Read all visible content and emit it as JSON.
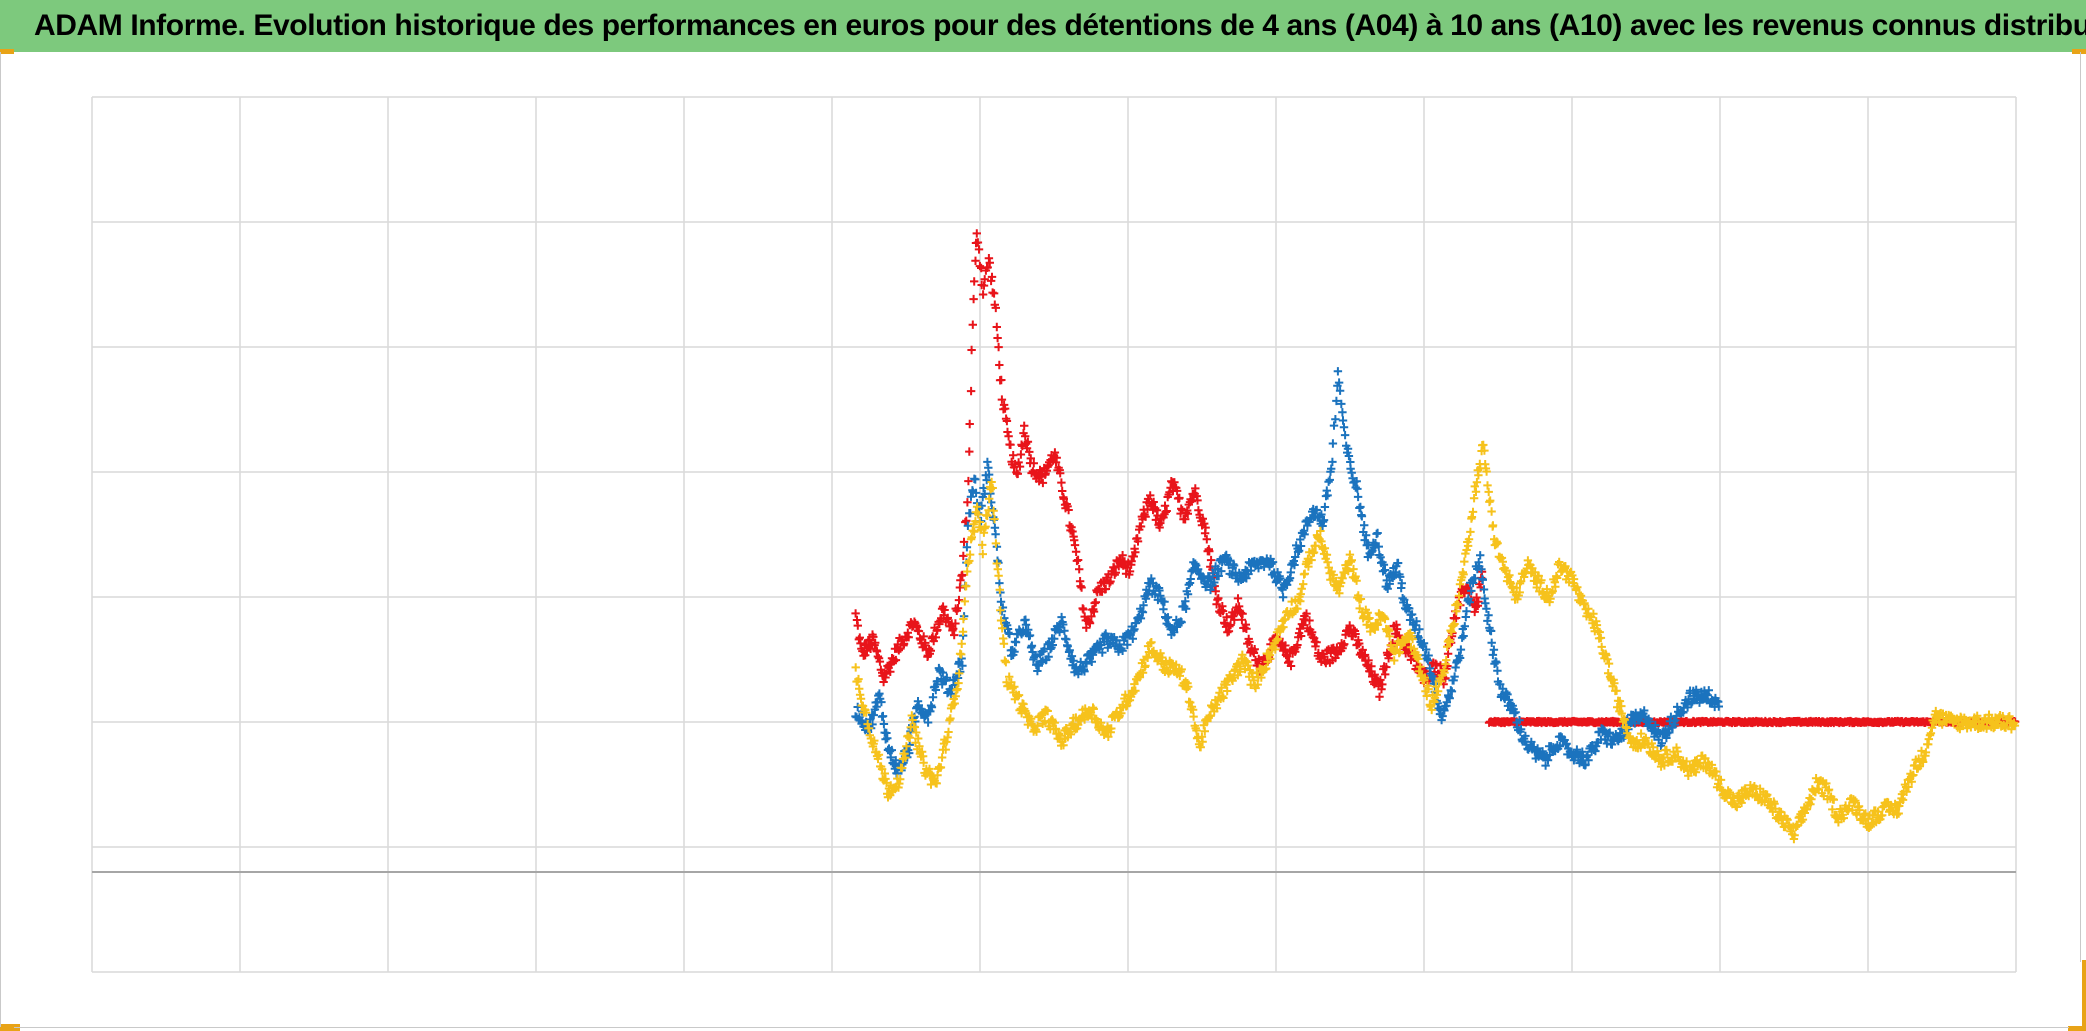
{
  "header": {
    "title": "ADAM Informe. Evolution historique des performances en euros pour des détentions de 4 ans (A04) à 10 ans (A10) avec les revenus connus distribués"
  },
  "colors": {
    "header_bg": "#7dc97d",
    "corner_marks": "#e8a317",
    "gridline": "#d9d9d9",
    "baseline": "#a6a6a6",
    "series_red": "#e8141a",
    "series_blue": "#1b73be",
    "series_yellow": "#f6c21c"
  },
  "chart_data": {
    "type": "scatter",
    "marker": "plus",
    "title": "ADAM Informe. Evolution historique des performances en euros pour des détentions de 4 ans (A04) à 10 ans (A10) avec les revenus connus distribués",
    "xlabel": "",
    "ylabel": "",
    "xlim": [
      0,
      13
    ],
    "ylim": [
      -1,
      6
    ],
    "grid": true,
    "legend": "none",
    "series": [
      {
        "color": "#e8141a",
        "keypoints": [
          [
            5.16,
            1.85
          ],
          [
            5.2,
            1.55
          ],
          [
            5.28,
            1.65
          ],
          [
            5.35,
            1.35
          ],
          [
            5.45,
            1.6
          ],
          [
            5.55,
            1.8
          ],
          [
            5.65,
            1.55
          ],
          [
            5.75,
            1.9
          ],
          [
            5.82,
            1.7
          ],
          [
            5.88,
            2.2
          ],
          [
            5.92,
            2.9
          ],
          [
            5.95,
            4.2
          ],
          [
            5.98,
            4.95
          ],
          [
            6.02,
            4.45
          ],
          [
            6.06,
            4.7
          ],
          [
            6.1,
            4.35
          ],
          [
            6.15,
            3.6
          ],
          [
            6.2,
            3.2
          ],
          [
            6.25,
            2.95
          ],
          [
            6.3,
            3.35
          ],
          [
            6.35,
            3.05
          ],
          [
            6.42,
            2.95
          ],
          [
            6.5,
            3.15
          ],
          [
            6.58,
            2.75
          ],
          [
            6.65,
            2.35
          ],
          [
            6.72,
            1.75
          ],
          [
            6.8,
            2.05
          ],
          [
            6.88,
            2.15
          ],
          [
            6.95,
            2.3
          ],
          [
            7.02,
            2.2
          ],
          [
            7.08,
            2.55
          ],
          [
            7.15,
            2.8
          ],
          [
            7.22,
            2.55
          ],
          [
            7.3,
            2.9
          ],
          [
            7.38,
            2.65
          ],
          [
            7.45,
            2.85
          ],
          [
            7.52,
            2.55
          ],
          [
            7.6,
            2.0
          ],
          [
            7.68,
            1.75
          ],
          [
            7.75,
            1.95
          ],
          [
            7.82,
            1.6
          ],
          [
            7.9,
            1.45
          ],
          [
            8.0,
            1.65
          ],
          [
            8.1,
            1.5
          ],
          [
            8.2,
            1.85
          ],
          [
            8.3,
            1.5
          ],
          [
            8.4,
            1.55
          ],
          [
            8.5,
            1.75
          ],
          [
            8.6,
            1.5
          ],
          [
            8.7,
            1.25
          ],
          [
            8.8,
            1.75
          ],
          [
            8.9,
            1.55
          ],
          [
            9.0,
            1.35
          ],
          [
            9.08,
            1.45
          ],
          [
            9.14,
            1.35
          ],
          [
            9.2,
            1.8
          ],
          [
            9.28,
            2.1
          ],
          [
            9.35,
            1.9
          ],
          [
            9.4,
            2.2
          ]
        ]
      },
      {
        "color": "#e8141a",
        "keypoints": [
          [
            9.44,
            1.0
          ],
          [
            10.0,
            1.0
          ],
          [
            10.5,
            1.0
          ],
          [
            11.0,
            1.0
          ],
          [
            11.5,
            1.0
          ],
          [
            12.0,
            1.0
          ],
          [
            12.5,
            1.0
          ],
          [
            13.0,
            1.0
          ]
        ]
      },
      {
        "color": "#1b73be",
        "keypoints": [
          [
            5.16,
            1.1
          ],
          [
            5.25,
            0.95
          ],
          [
            5.32,
            1.2
          ],
          [
            5.38,
            0.8
          ],
          [
            5.45,
            0.6
          ],
          [
            5.52,
            0.8
          ],
          [
            5.58,
            1.15
          ],
          [
            5.65,
            1.05
          ],
          [
            5.72,
            1.4
          ],
          [
            5.8,
            1.25
          ],
          [
            5.88,
            1.5
          ],
          [
            5.92,
            2.6
          ],
          [
            5.96,
            2.95
          ],
          [
            6.0,
            2.6
          ],
          [
            6.05,
            3.05
          ],
          [
            6.1,
            2.55
          ],
          [
            6.15,
            1.9
          ],
          [
            6.22,
            1.55
          ],
          [
            6.3,
            1.8
          ],
          [
            6.38,
            1.45
          ],
          [
            6.45,
            1.55
          ],
          [
            6.55,
            1.8
          ],
          [
            6.65,
            1.4
          ],
          [
            6.75,
            1.5
          ],
          [
            6.85,
            1.65
          ],
          [
            6.95,
            1.6
          ],
          [
            7.05,
            1.75
          ],
          [
            7.15,
            2.1
          ],
          [
            7.22,
            2.0
          ],
          [
            7.3,
            1.7
          ],
          [
            7.38,
            1.9
          ],
          [
            7.45,
            2.25
          ],
          [
            7.55,
            2.1
          ],
          [
            7.65,
            2.3
          ],
          [
            7.75,
            2.15
          ],
          [
            7.85,
            2.25
          ],
          [
            7.95,
            2.3
          ],
          [
            8.05,
            2.05
          ],
          [
            8.15,
            2.4
          ],
          [
            8.25,
            2.7
          ],
          [
            8.32,
            2.6
          ],
          [
            8.38,
            3.1
          ],
          [
            8.42,
            3.8
          ],
          [
            8.46,
            3.3
          ],
          [
            8.5,
            3.05
          ],
          [
            8.55,
            2.85
          ],
          [
            8.62,
            2.35
          ],
          [
            8.68,
            2.5
          ],
          [
            8.75,
            2.1
          ],
          [
            8.82,
            2.25
          ],
          [
            8.88,
            1.9
          ],
          [
            8.95,
            1.75
          ],
          [
            9.02,
            1.55
          ],
          [
            9.08,
            1.25
          ],
          [
            9.12,
            1.05
          ],
          [
            9.18,
            1.25
          ],
          [
            9.25,
            1.6
          ],
          [
            9.32,
            2.1
          ],
          [
            9.38,
            2.3
          ],
          [
            9.44,
            1.75
          ],
          [
            9.52,
            1.25
          ],
          [
            9.6,
            1.1
          ],
          [
            9.68,
            0.85
          ],
          [
            9.75,
            0.75
          ],
          [
            9.82,
            0.7
          ],
          [
            9.9,
            0.85
          ],
          [
            10.0,
            0.75
          ],
          [
            10.1,
            0.7
          ],
          [
            10.2,
            0.9
          ],
          [
            10.3,
            0.85
          ],
          [
            10.4,
            1.0
          ],
          [
            10.5,
            1.05
          ],
          [
            10.6,
            0.85
          ],
          [
            10.7,
            1.05
          ],
          [
            10.8,
            1.2
          ],
          [
            10.95,
            1.2
          ],
          [
            11.0,
            1.1
          ]
        ]
      },
      {
        "color": "#f6c21c",
        "keypoints": [
          [
            5.16,
            1.4
          ],
          [
            5.22,
            1.1
          ],
          [
            5.3,
            0.75
          ],
          [
            5.38,
            0.45
          ],
          [
            5.46,
            0.55
          ],
          [
            5.54,
            1.0
          ],
          [
            5.62,
            0.65
          ],
          [
            5.7,
            0.5
          ],
          [
            5.78,
            0.9
          ],
          [
            5.86,
            1.4
          ],
          [
            5.92,
            2.3
          ],
          [
            5.98,
            2.7
          ],
          [
            6.02,
            2.4
          ],
          [
            6.08,
            2.95
          ],
          [
            6.12,
            2.2
          ],
          [
            6.18,
            1.35
          ],
          [
            6.25,
            1.2
          ],
          [
            6.35,
            0.95
          ],
          [
            6.45,
            1.05
          ],
          [
            6.55,
            0.85
          ],
          [
            6.65,
            1.0
          ],
          [
            6.75,
            1.1
          ],
          [
            6.85,
            0.9
          ],
          [
            6.95,
            1.1
          ],
          [
            7.05,
            1.3
          ],
          [
            7.15,
            1.6
          ],
          [
            7.25,
            1.45
          ],
          [
            7.35,
            1.4
          ],
          [
            7.42,
            1.2
          ],
          [
            7.48,
            0.8
          ],
          [
            7.55,
            1.05
          ],
          [
            7.62,
            1.2
          ],
          [
            7.7,
            1.35
          ],
          [
            7.78,
            1.5
          ],
          [
            7.85,
            1.3
          ],
          [
            7.92,
            1.45
          ],
          [
            8.0,
            1.65
          ],
          [
            8.08,
            1.9
          ],
          [
            8.15,
            1.95
          ],
          [
            8.22,
            2.3
          ],
          [
            8.3,
            2.5
          ],
          [
            8.35,
            2.25
          ],
          [
            8.42,
            2.05
          ],
          [
            8.5,
            2.3
          ],
          [
            8.58,
            1.9
          ],
          [
            8.65,
            1.75
          ],
          [
            8.72,
            1.85
          ],
          [
            8.8,
            1.55
          ],
          [
            8.9,
            1.7
          ],
          [
            8.98,
            1.4
          ],
          [
            9.05,
            1.15
          ],
          [
            9.12,
            1.35
          ],
          [
            9.2,
            1.8
          ],
          [
            9.28,
            2.3
          ],
          [
            9.35,
            2.9
          ],
          [
            9.4,
            3.2
          ],
          [
            9.48,
            2.45
          ],
          [
            9.55,
            2.2
          ],
          [
            9.62,
            2.0
          ],
          [
            9.7,
            2.25
          ],
          [
            9.78,
            2.1
          ],
          [
            9.85,
            2.0
          ],
          [
            9.92,
            2.25
          ],
          [
            10.0,
            2.15
          ],
          [
            10.08,
            1.9
          ],
          [
            10.15,
            1.8
          ],
          [
            10.22,
            1.55
          ],
          [
            10.3,
            1.2
          ],
          [
            10.4,
            0.85
          ],
          [
            10.5,
            0.85
          ],
          [
            10.6,
            0.7
          ],
          [
            10.7,
            0.75
          ],
          [
            10.8,
            0.6
          ],
          [
            10.9,
            0.7
          ],
          [
            11.0,
            0.5
          ],
          [
            11.1,
            0.35
          ],
          [
            11.2,
            0.45
          ],
          [
            11.3,
            0.4
          ],
          [
            11.4,
            0.25
          ],
          [
            11.5,
            0.1
          ],
          [
            11.58,
            0.3
          ],
          [
            11.65,
            0.5
          ],
          [
            11.72,
            0.45
          ],
          [
            11.8,
            0.25
          ],
          [
            11.9,
            0.35
          ],
          [
            12.0,
            0.2
          ],
          [
            12.1,
            0.3
          ],
          [
            12.2,
            0.3
          ],
          [
            12.3,
            0.6
          ],
          [
            12.38,
            0.75
          ],
          [
            12.45,
            1.05
          ],
          [
            12.55,
            1.0
          ],
          [
            12.65,
            1.0
          ],
          [
            13.0,
            1.0
          ]
        ]
      }
    ]
  }
}
